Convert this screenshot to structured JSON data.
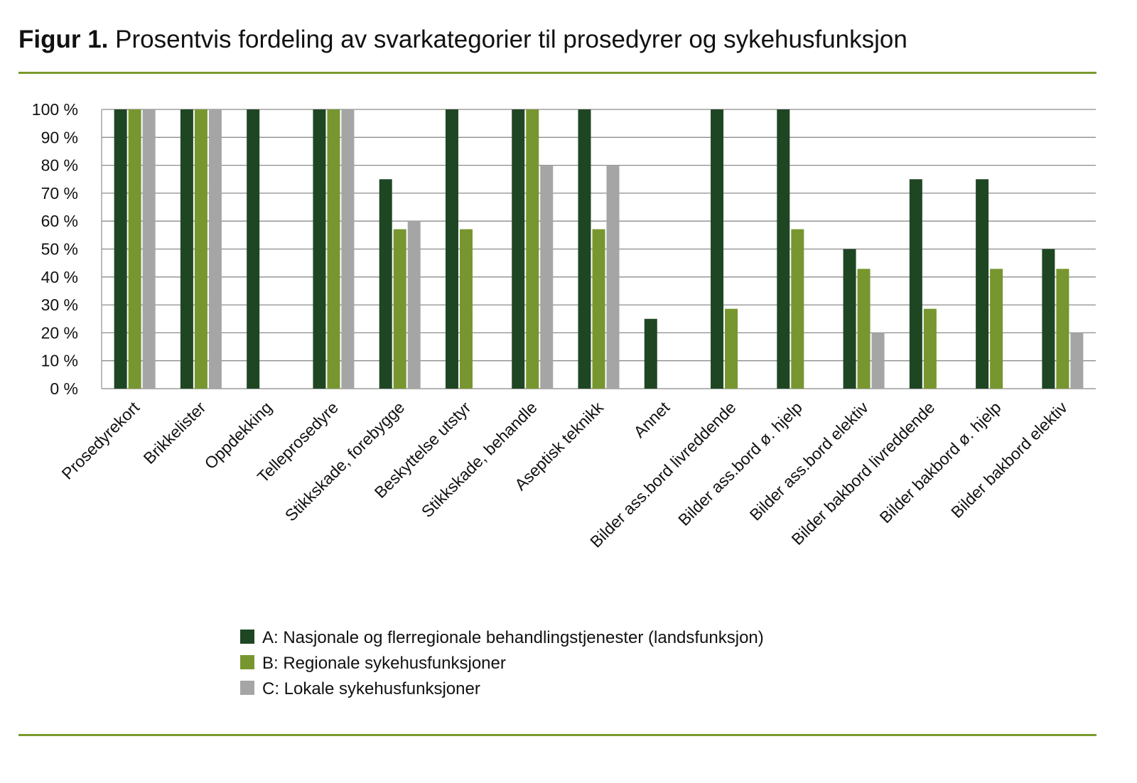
{
  "title_prefix": "Figur 1.",
  "title_text": "Prosentvis fordeling av svarkategorier til prosedyrer og sykehusfunksjon",
  "chart_data": {
    "type": "bar",
    "title": "Figur 1. Prosentvis fordeling av svarkategorier til prosedyrer og sykehusfunksjon",
    "xlabel": "",
    "ylabel": "",
    "ylim": [
      0,
      100
    ],
    "yticks": [
      "0 %",
      "10 %",
      "20 %",
      "30 %",
      "40 %",
      "50 %",
      "60 %",
      "70 %",
      "80 %",
      "90 %",
      "100 %"
    ],
    "grid": true,
    "legend_position": "bottom",
    "categories": [
      "Prosedyrekort",
      "Brikkelister",
      "Oppdekking",
      "Telleprosedyre",
      "Stikkskade, forebygge",
      "Beskyttelse utstyr",
      "Stikkskade, behandle",
      "Aseptisk teknikk",
      "Annet",
      "Bilder ass.bord livreddende",
      "Bilder ass.bord ø. hjelp",
      "Bilder ass.bord elektiv",
      "Bilder bakbord livreddende",
      "Bilder bakbord ø. hjelp",
      "Bilder bakbord elektiv"
    ],
    "series": [
      {
        "name": "A: Nasjonale og flerregionale behandlingstjenester (landsfunksjon)",
        "color": "#1f4623",
        "values": [
          100,
          100,
          100,
          100,
          75,
          100,
          100,
          100,
          25,
          100,
          100,
          50,
          75,
          75,
          50
        ]
      },
      {
        "name": "B: Regionale sykehusfunksjoner",
        "color": "#77962f",
        "values": [
          100,
          100,
          0,
          100,
          57.1,
          57.1,
          100,
          57.1,
          0,
          28.6,
          57.1,
          42.9,
          28.6,
          42.9,
          42.9
        ]
      },
      {
        "name": "C: Lokale sykehusfunksjoner",
        "color": "#a5a5a5",
        "values": [
          100,
          100,
          0,
          100,
          60,
          0,
          80,
          80,
          0,
          0,
          0,
          20,
          0,
          0,
          20
        ]
      }
    ]
  }
}
